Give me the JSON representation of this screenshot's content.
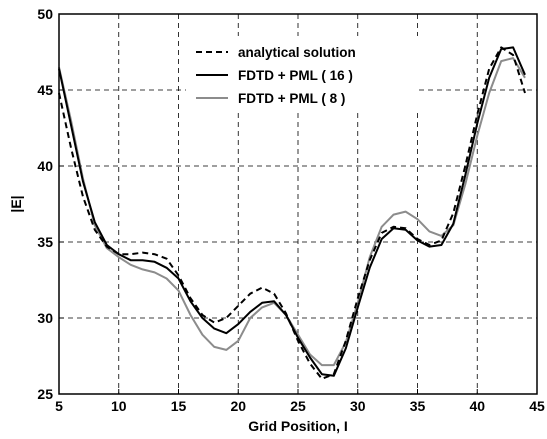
{
  "chart_data": {
    "type": "line",
    "xlabel": "Grid Position, I",
    "ylabel": "|E|",
    "xlim": [
      5,
      45
    ],
    "ylim": [
      25,
      50
    ],
    "xticks": [
      5,
      10,
      15,
      20,
      25,
      30,
      35,
      40,
      45
    ],
    "yticks": [
      25,
      30,
      35,
      40,
      45,
      50
    ],
    "grid": true,
    "legend_position": "top-center",
    "series": [
      {
        "name": "analytical solution",
        "style": "dashed",
        "color": "#000000",
        "x": [
          5,
          6,
          7,
          8,
          9,
          10,
          11,
          12,
          13,
          14,
          15,
          16,
          17,
          18,
          19,
          20,
          21,
          22,
          23,
          24,
          25,
          26,
          27,
          28,
          29,
          30,
          31,
          32,
          33,
          34,
          35,
          36,
          37,
          38,
          39,
          40,
          41,
          42,
          43,
          44
        ],
        "y": [
          44.8,
          41.2,
          38.0,
          35.8,
          34.7,
          34.2,
          34.2,
          34.3,
          34.2,
          33.9,
          32.8,
          31.3,
          30.2,
          29.7,
          30.0,
          30.8,
          31.6,
          32.0,
          31.6,
          30.3,
          28.5,
          27.0,
          26.0,
          26.3,
          28.5,
          31.3,
          33.8,
          35.6,
          36.0,
          35.9,
          35.2,
          34.8,
          35.1,
          36.9,
          40.0,
          43.4,
          46.4,
          47.8,
          47.3,
          44.8
        ]
      },
      {
        "name": "FDTD + PML ( 16 )",
        "style": "solid",
        "color": "#000000",
        "x": [
          5,
          6,
          7,
          8,
          9,
          10,
          11,
          12,
          13,
          14,
          15,
          16,
          17,
          18,
          19,
          20,
          21,
          22,
          23,
          24,
          25,
          26,
          27,
          28,
          29,
          30,
          31,
          32,
          33,
          34,
          35,
          36,
          37,
          38,
          39,
          40,
          41,
          42,
          43,
          44
        ],
        "y": [
          46.4,
          42.7,
          39.0,
          36.3,
          34.8,
          34.2,
          33.8,
          33.8,
          33.7,
          33.3,
          32.6,
          31.1,
          30.0,
          29.3,
          29.0,
          29.6,
          30.4,
          31.0,
          31.1,
          30.2,
          28.7,
          27.4,
          26.3,
          26.2,
          28.0,
          30.7,
          33.3,
          35.2,
          35.9,
          35.8,
          35.1,
          34.7,
          34.8,
          36.2,
          39.4,
          42.8,
          45.8,
          47.7,
          47.8,
          46.0
        ]
      },
      {
        "name": "FDTD + PML ( 8 )",
        "style": "solid",
        "color": "#8c8c8c",
        "x": [
          5,
          6,
          7,
          8,
          9,
          10,
          11,
          12,
          13,
          14,
          15,
          16,
          17,
          18,
          19,
          20,
          21,
          22,
          23,
          24,
          25,
          26,
          27,
          28,
          29,
          30,
          31,
          32,
          33,
          34,
          35,
          36,
          37,
          38,
          39,
          40,
          41,
          42,
          43,
          44
        ],
        "y": [
          46.5,
          43.0,
          39.2,
          36.1,
          34.6,
          34.0,
          33.5,
          33.2,
          33.0,
          32.6,
          31.8,
          30.2,
          28.9,
          28.1,
          27.9,
          28.5,
          30.0,
          30.7,
          31.0,
          30.2,
          28.9,
          27.6,
          26.9,
          26.9,
          28.4,
          31.0,
          34.0,
          36.0,
          36.8,
          37.0,
          36.5,
          35.7,
          35.4,
          36.1,
          38.8,
          42.0,
          44.8,
          46.9,
          47.1,
          45.8
        ]
      }
    ]
  }
}
